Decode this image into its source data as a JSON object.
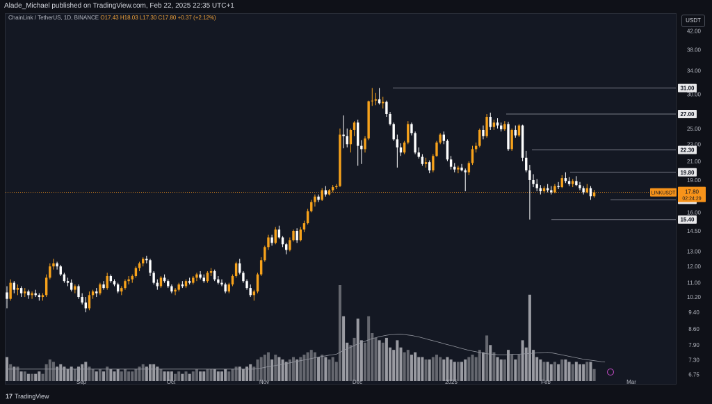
{
  "header": {
    "published": "Alade_Michael published on TradingView.com, Feb 22, 2025 22:35 UTC+1"
  },
  "legend": {
    "symbol": "ChainLink / TetherUS, 1D, BINANCE",
    "ohlc": "O17.43  H18.03  L17.30  C17.80  +0.37 (+2.12%)"
  },
  "currency_button": "USDT",
  "brand": {
    "logo": "17",
    "name": "TradingView"
  },
  "colors": {
    "up": "#f7a21b",
    "down": "#ffffff",
    "level": "#787b86",
    "price": "#f7931a",
    "volume": "#9a9ca3"
  },
  "chart_data": {
    "type": "candlestick",
    "symbol": "LINKUSDT",
    "y_scale": "log",
    "ylim": [
      6.4,
      46
    ],
    "y_ticks": [
      42.0,
      38.0,
      34.0,
      30.0,
      25.0,
      23.0,
      21.0,
      19.0,
      16.0,
      14.5,
      13.0,
      12.0,
      11.0,
      10.2,
      9.4,
      8.6,
      7.9,
      7.3,
      6.75
    ],
    "x_ticks": [
      "Sep",
      "Oct",
      "Nov",
      "Dec",
      "2025",
      "Feb",
      "Mar"
    ],
    "levels": [
      31.0,
      27.0,
      22.3,
      19.8,
      17.1,
      15.4
    ],
    "last_price": {
      "symbol": "LINKUSDT",
      "value": "17.80",
      "countdown": "02:24:29"
    },
    "candles": [
      [
        10.45,
        10.8,
        9.6,
        10.1,
        10
      ],
      [
        10.1,
        11.2,
        10.0,
        11.0,
        7
      ],
      [
        11.0,
        11.1,
        10.4,
        10.6,
        6
      ],
      [
        10.6,
        10.9,
        10.3,
        10.7,
        6
      ],
      [
        10.7,
        10.8,
        10.2,
        10.4,
        4
      ],
      [
        10.4,
        10.7,
        10.2,
        10.5,
        4
      ],
      [
        10.5,
        10.6,
        10.1,
        10.3,
        3
      ],
      [
        10.3,
        10.5,
        10.1,
        10.4,
        3
      ],
      [
        10.4,
        10.6,
        10.2,
        10.3,
        3
      ],
      [
        10.3,
        10.4,
        10.0,
        10.2,
        4
      ],
      [
        10.2,
        10.4,
        10.0,
        10.3,
        3
      ],
      [
        10.3,
        11.5,
        10.2,
        11.3,
        7
      ],
      [
        11.3,
        12.2,
        11.2,
        12.0,
        9
      ],
      [
        12.0,
        12.5,
        11.8,
        12.2,
        8
      ],
      [
        12.2,
        12.3,
        11.8,
        12.0,
        6
      ],
      [
        12.0,
        12.1,
        11.4,
        11.5,
        7
      ],
      [
        11.5,
        11.6,
        11.0,
        11.1,
        6
      ],
      [
        11.1,
        11.3,
        10.8,
        11.0,
        5
      ],
      [
        11.0,
        11.2,
        10.5,
        10.6,
        6
      ],
      [
        10.6,
        10.9,
        10.4,
        10.8,
        5
      ],
      [
        10.8,
        10.9,
        10.1,
        10.2,
        6
      ],
      [
        10.2,
        10.4,
        9.8,
        9.9,
        7
      ],
      [
        9.9,
        10.2,
        9.4,
        9.6,
        8
      ],
      [
        9.6,
        10.5,
        9.5,
        10.3,
        6
      ],
      [
        10.3,
        10.6,
        10.1,
        10.5,
        5
      ],
      [
        10.5,
        10.7,
        10.2,
        10.4,
        4
      ],
      [
        10.4,
        11.0,
        10.3,
        10.9,
        5
      ],
      [
        10.9,
        11.1,
        10.6,
        10.7,
        4
      ],
      [
        10.7,
        11.6,
        10.6,
        11.4,
        6
      ],
      [
        11.4,
        11.5,
        11.0,
        11.1,
        5
      ],
      [
        11.1,
        11.2,
        10.8,
        10.9,
        4
      ],
      [
        10.9,
        11.0,
        10.4,
        10.5,
        5
      ],
      [
        10.5,
        10.8,
        10.3,
        10.7,
        4
      ],
      [
        10.7,
        11.2,
        10.6,
        11.1,
        5
      ],
      [
        11.1,
        11.4,
        10.9,
        11.2,
        4
      ],
      [
        11.2,
        11.5,
        11.0,
        11.4,
        4
      ],
      [
        11.4,
        12.0,
        11.3,
        11.9,
        5
      ],
      [
        11.9,
        12.3,
        11.7,
        12.2,
        6
      ],
      [
        12.2,
        12.6,
        12.0,
        12.5,
        7
      ],
      [
        12.5,
        12.7,
        12.2,
        12.4,
        6
      ],
      [
        12.4,
        12.5,
        11.4,
        11.6,
        7
      ],
      [
        11.6,
        11.7,
        10.9,
        11.0,
        7
      ],
      [
        11.0,
        11.2,
        10.6,
        10.8,
        6
      ],
      [
        10.8,
        11.4,
        10.7,
        11.3,
        5
      ],
      [
        11.3,
        11.5,
        11.0,
        11.1,
        4
      ],
      [
        11.1,
        11.2,
        10.7,
        10.8,
        4
      ],
      [
        10.8,
        10.9,
        10.4,
        10.5,
        4
      ],
      [
        10.5,
        10.7,
        10.3,
        10.6,
        3
      ],
      [
        10.6,
        11.0,
        10.5,
        10.9,
        4
      ],
      [
        10.9,
        11.1,
        10.7,
        10.8,
        3
      ],
      [
        10.8,
        11.2,
        10.7,
        11.1,
        4
      ],
      [
        11.1,
        11.3,
        10.9,
        11.0,
        3
      ],
      [
        11.0,
        11.4,
        10.9,
        11.3,
        4
      ],
      [
        11.3,
        11.6,
        11.1,
        11.5,
        5
      ],
      [
        11.5,
        11.7,
        11.2,
        11.3,
        4
      ],
      [
        11.3,
        11.5,
        11.0,
        11.1,
        4
      ],
      [
        11.1,
        11.7,
        11.0,
        11.6,
        5
      ],
      [
        11.6,
        11.9,
        11.4,
        11.7,
        5
      ],
      [
        11.7,
        11.8,
        11.1,
        11.2,
        5
      ],
      [
        11.2,
        11.4,
        10.9,
        11.0,
        4
      ],
      [
        11.0,
        11.2,
        10.8,
        10.9,
        4
      ],
      [
        10.9,
        11.0,
        10.4,
        10.5,
        5
      ],
      [
        10.5,
        11.0,
        10.4,
        10.9,
        4
      ],
      [
        10.9,
        11.5,
        10.8,
        11.4,
        5
      ],
      [
        11.4,
        12.3,
        11.3,
        12.2,
        6
      ],
      [
        12.2,
        12.5,
        11.5,
        11.6,
        6
      ],
      [
        11.6,
        11.7,
        11.0,
        11.1,
        5
      ],
      [
        11.1,
        11.2,
        10.6,
        10.7,
        6
      ],
      [
        10.7,
        10.9,
        10.2,
        10.3,
        7
      ],
      [
        10.3,
        10.6,
        10.0,
        10.5,
        6
      ],
      [
        10.5,
        11.6,
        10.4,
        11.5,
        9
      ],
      [
        11.5,
        12.6,
        11.4,
        12.4,
        10
      ],
      [
        12.4,
        13.4,
        12.3,
        13.3,
        11
      ],
      [
        13.3,
        14.2,
        13.1,
        14.0,
        12
      ],
      [
        14.0,
        14.2,
        13.4,
        13.6,
        9
      ],
      [
        13.6,
        14.8,
        13.5,
        14.6,
        11
      ],
      [
        14.6,
        14.9,
        13.9,
        14.0,
        10
      ],
      [
        14.0,
        14.1,
        13.3,
        13.5,
        9
      ],
      [
        13.5,
        13.6,
        12.8,
        13.1,
        8
      ],
      [
        13.1,
        14.0,
        13.0,
        13.8,
        9
      ],
      [
        13.8,
        14.6,
        13.7,
        14.5,
        10
      ],
      [
        14.5,
        14.7,
        13.6,
        13.8,
        9
      ],
      [
        13.8,
        14.8,
        13.7,
        14.6,
        10
      ],
      [
        14.6,
        15.3,
        14.4,
        15.1,
        11
      ],
      [
        15.1,
        16.3,
        15.0,
        16.1,
        12
      ],
      [
        16.1,
        17.1,
        16.0,
        16.9,
        13
      ],
      [
        16.9,
        17.6,
        16.5,
        17.4,
        12
      ],
      [
        17.4,
        17.6,
        16.9,
        17.1,
        10
      ],
      [
        17.1,
        18.2,
        17.0,
        18.0,
        11
      ],
      [
        18.0,
        18.4,
        17.4,
        17.6,
        10
      ],
      [
        17.6,
        18.1,
        17.5,
        18.0,
        9
      ],
      [
        18.0,
        18.5,
        17.8,
        18.3,
        10
      ],
      [
        18.3,
        18.6,
        18.1,
        18.4,
        8
      ],
      [
        18.4,
        25.0,
        18.3,
        24.2,
        40
      ],
      [
        24.2,
        26.8,
        22.5,
        24.0,
        27
      ],
      [
        24.0,
        25.0,
        22.6,
        23.0,
        16
      ],
      [
        23.0,
        25.0,
        22.0,
        24.8,
        15
      ],
      [
        24.8,
        26.0,
        24.0,
        25.8,
        18
      ],
      [
        25.8,
        26.2,
        20.5,
        22.8,
        26
      ],
      [
        22.8,
        23.5,
        20.7,
        22.4,
        17
      ],
      [
        22.4,
        24.0,
        22.0,
        23.7,
        16
      ],
      [
        23.7,
        29.0,
        23.5,
        28.9,
        27
      ],
      [
        28.9,
        31.0,
        28.2,
        29.0,
        20
      ],
      [
        29.0,
        30.2,
        28.3,
        29.2,
        18
      ],
      [
        29.2,
        31.0,
        28.4,
        28.6,
        17
      ],
      [
        28.6,
        29.6,
        27.8,
        28.8,
        16
      ],
      [
        28.8,
        29.0,
        26.6,
        27.0,
        18
      ],
      [
        27.0,
        27.3,
        25.4,
        25.6,
        14
      ],
      [
        25.6,
        25.8,
        23.4,
        23.6,
        13
      ],
      [
        23.6,
        24.2,
        20.3,
        22.6,
        17
      ],
      [
        22.6,
        23.1,
        21.6,
        22.0,
        14
      ],
      [
        22.0,
        23.4,
        21.8,
        23.2,
        12
      ],
      [
        23.2,
        26.0,
        23.0,
        25.6,
        13
      ],
      [
        25.6,
        25.8,
        24.1,
        24.4,
        11
      ],
      [
        24.4,
        24.6,
        21.8,
        22.0,
        12
      ],
      [
        22.0,
        22.6,
        21.3,
        21.5,
        10
      ],
      [
        21.5,
        21.8,
        20.5,
        20.7,
        10
      ],
      [
        20.7,
        21.4,
        20.3,
        20.9,
        9
      ],
      [
        20.9,
        21.1,
        19.7,
        20.0,
        9
      ],
      [
        20.0,
        21.8,
        19.8,
        21.6,
        10
      ],
      [
        21.6,
        23.4,
        21.5,
        23.2,
        11
      ],
      [
        23.2,
        24.4,
        23.0,
        24.2,
        10
      ],
      [
        24.2,
        24.6,
        23.0,
        23.4,
        9
      ],
      [
        23.4,
        23.6,
        21.0,
        21.2,
        10
      ],
      [
        21.2,
        21.6,
        20.1,
        20.4,
        9
      ],
      [
        20.4,
        20.8,
        19.8,
        20.1,
        8
      ],
      [
        20.1,
        20.5,
        19.7,
        20.3,
        8
      ],
      [
        20.3,
        20.7,
        19.9,
        20.0,
        8
      ],
      [
        20.0,
        20.2,
        17.9,
        19.8,
        9
      ],
      [
        19.8,
        21.0,
        19.5,
        20.8,
        10
      ],
      [
        20.8,
        22.8,
        20.6,
        22.4,
        11
      ],
      [
        22.4,
        23.2,
        22.0,
        22.8,
        10
      ],
      [
        22.8,
        25.0,
        22.6,
        24.8,
        13
      ],
      [
        24.8,
        25.4,
        23.6,
        24.0,
        12
      ],
      [
        24.0,
        27.0,
        23.8,
        26.6,
        19
      ],
      [
        26.6,
        27.2,
        24.8,
        25.2,
        15
      ],
      [
        25.2,
        26.2,
        24.8,
        25.8,
        12
      ],
      [
        25.8,
        26.4,
        25.0,
        25.4,
        10
      ],
      [
        25.4,
        25.8,
        24.6,
        24.9,
        9
      ],
      [
        24.9,
        26.0,
        24.7,
        25.6,
        9
      ],
      [
        25.6,
        25.9,
        22.2,
        22.4,
        13
      ],
      [
        22.4,
        25.0,
        22.2,
        24.8,
        11
      ],
      [
        24.8,
        25.4,
        23.8,
        24.1,
        9
      ],
      [
        24.1,
        25.6,
        23.9,
        25.4,
        11
      ],
      [
        25.4,
        25.5,
        21.0,
        21.4,
        17
      ],
      [
        21.4,
        22.2,
        19.8,
        20.0,
        14
      ],
      [
        20.0,
        20.6,
        15.4,
        19.0,
        36
      ],
      [
        19.0,
        19.6,
        18.3,
        18.6,
        13
      ],
      [
        18.6,
        19.1,
        17.9,
        18.2,
        10
      ],
      [
        18.2,
        18.5,
        17.6,
        17.9,
        9
      ],
      [
        17.9,
        18.4,
        17.7,
        18.2,
        8
      ],
      [
        18.2,
        18.6,
        17.8,
        18.0,
        8
      ],
      [
        18.0,
        18.4,
        17.6,
        17.8,
        7
      ],
      [
        17.8,
        18.6,
        17.7,
        18.4,
        8
      ],
      [
        18.4,
        18.8,
        18.1,
        18.3,
        7
      ],
      [
        18.3,
        19.5,
        18.2,
        19.2,
        9
      ],
      [
        19.2,
        19.8,
        18.7,
        18.9,
        9
      ],
      [
        18.9,
        19.3,
        18.4,
        18.6,
        8
      ],
      [
        18.6,
        19.1,
        18.3,
        18.9,
        7
      ],
      [
        18.9,
        19.4,
        18.4,
        18.5,
        8
      ],
      [
        18.5,
        18.8,
        18.0,
        18.2,
        7
      ],
      [
        18.2,
        18.4,
        17.6,
        17.8,
        7
      ],
      [
        17.8,
        18.6,
        17.7,
        18.2,
        8
      ],
      [
        18.2,
        18.4,
        17.1,
        17.43,
        8
      ],
      [
        17.43,
        18.03,
        17.3,
        17.8,
        5
      ]
    ],
    "volume_ma": [
      5.0,
      5.0,
      5.0,
      5.0,
      5.0,
      5.0,
      5.0,
      5.0,
      5.0,
      5.0,
      5.0,
      5.0,
      5.0,
      5.0,
      5.0,
      5.0,
      5.0,
      5.0,
      5.0,
      5.0,
      5.0,
      5.0,
      5.0,
      5.0,
      5.0,
      5.0,
      5.0,
      5.0,
      5.0,
      5.0,
      5.0,
      5.0,
      5.0,
      5.0,
      5.0,
      5.0,
      5.0,
      5.0,
      5.0,
      5.0,
      5.0,
      5.0,
      5.0,
      5.0,
      5.0,
      5.0,
      5.0,
      5.0,
      5.0,
      5.0,
      5.0,
      5.0,
      5.0,
      5.0,
      5.0,
      5.0,
      5.0,
      5.0,
      5.0,
      5.0,
      5.0,
      5.0,
      5.0,
      5.0,
      5.0,
      5.0,
      5.0,
      5.0,
      5.0,
      5.0,
      5.2,
      5.4,
      5.7,
      6.0,
      6.2,
      6.5,
      6.8,
      7.0,
      7.3,
      7.6,
      7.9,
      8.2,
      8.5,
      8.8,
      9.1,
      9.4,
      9.7,
      10.0,
      10.3,
      10.5,
      10.8,
      11.0,
      11.2,
      12.0,
      12.8,
      13.5,
      14.1,
      14.8,
      15.5,
      16.1,
      16.6,
      17.2,
      17.7,
      18.1,
      18.5,
      18.8,
      19.1,
      19.3,
      19.4,
      19.5,
      19.5,
      19.4,
      19.2,
      19.0,
      18.7,
      18.4,
      18.0,
      17.6,
      17.2,
      16.8,
      16.4,
      16.0,
      15.6,
      15.2,
      14.8,
      14.4,
      14.0,
      13.6,
      13.2,
      12.8,
      12.5,
      12.2,
      11.9,
      11.6,
      11.4,
      11.2,
      11.1,
      11.0,
      11.0,
      11.0,
      11.0,
      11.1,
      11.2,
      11.2,
      11.3,
      11.4,
      11.5,
      11.6,
      11.7,
      11.8,
      11.9,
      12.0,
      11.8,
      11.5,
      11.2,
      10.9,
      10.6,
      10.3,
      10.0,
      9.7,
      9.4,
      9.1,
      8.9,
      8.7,
      8.5,
      8.3,
      8.1,
      8.0
    ]
  }
}
